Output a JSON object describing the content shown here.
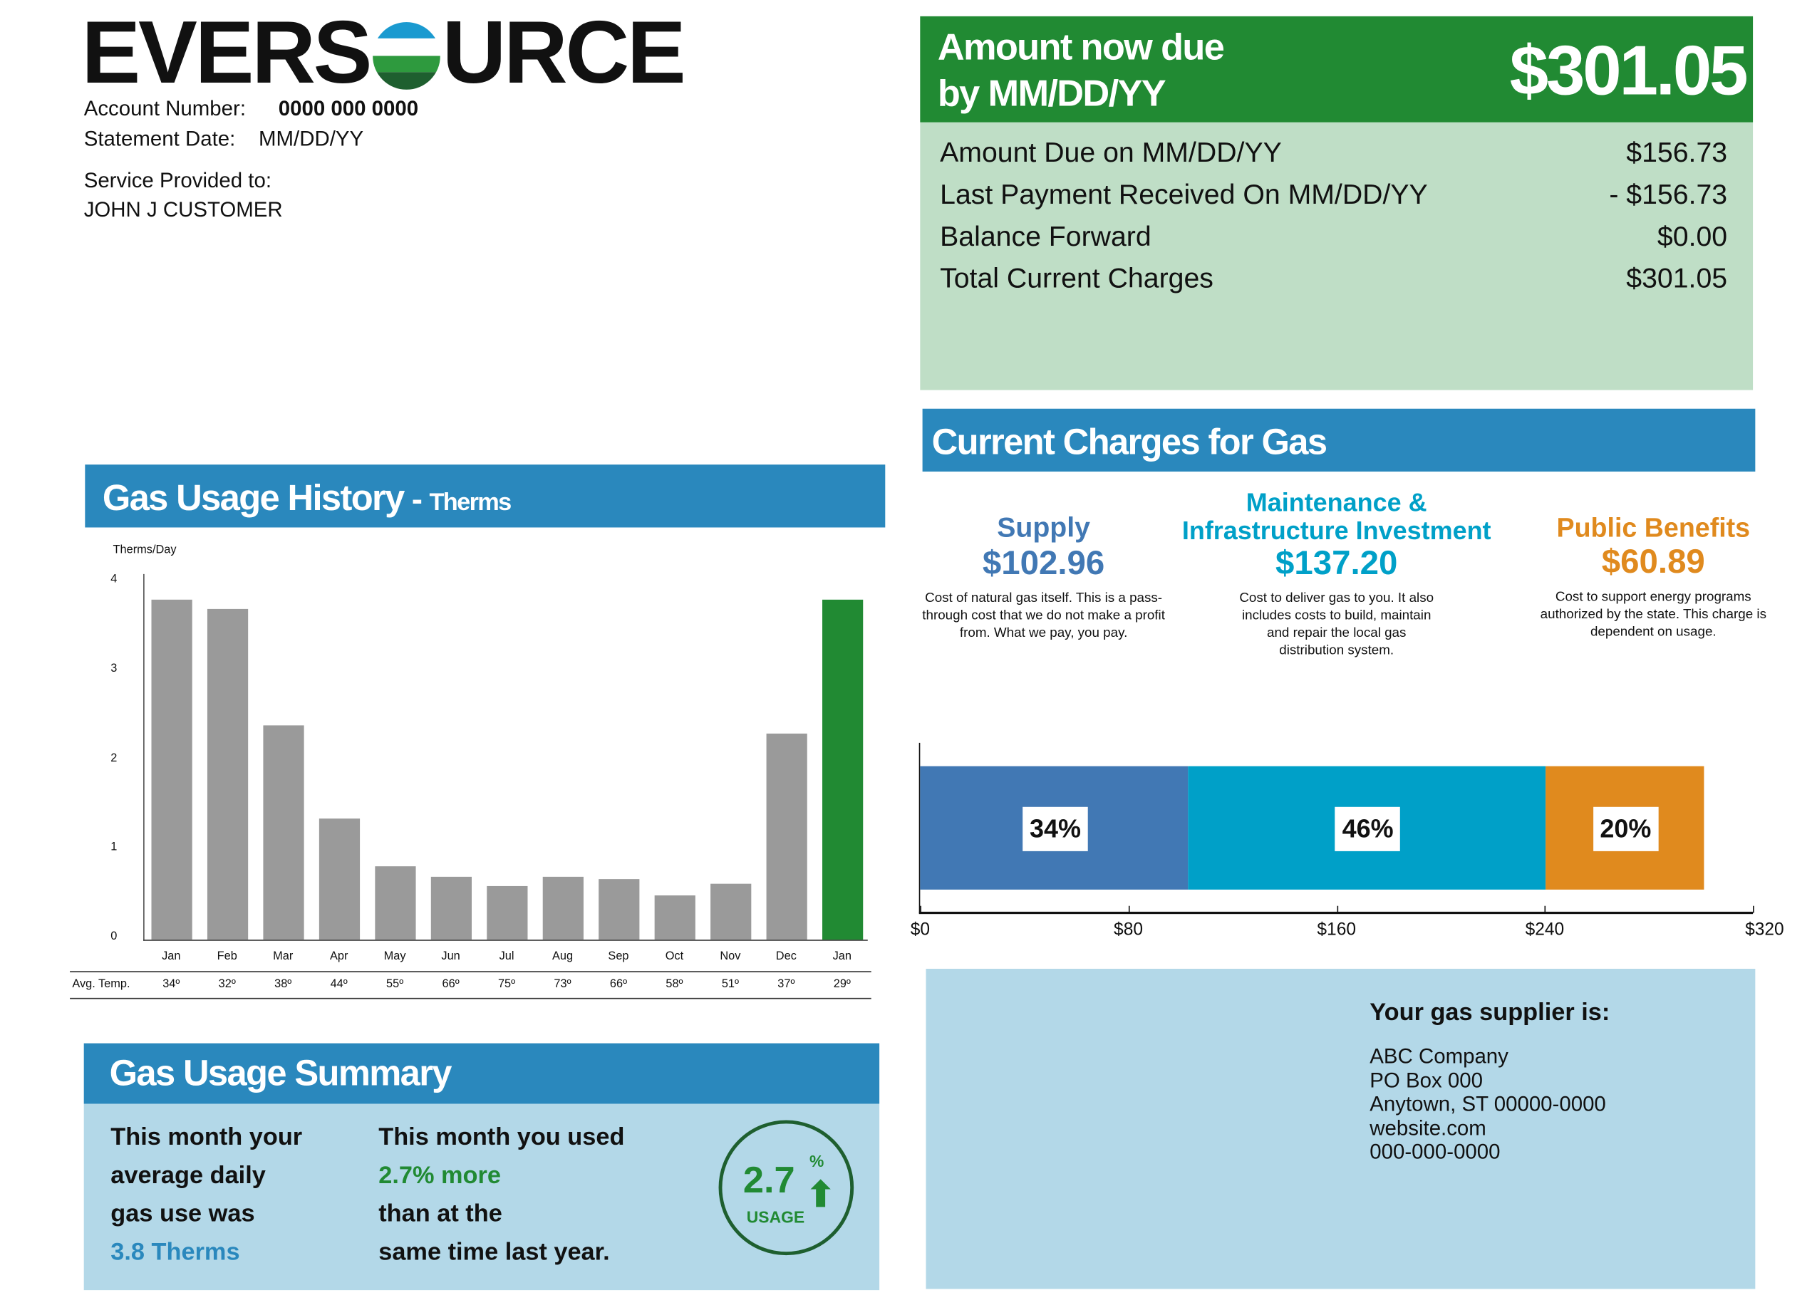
{
  "brand": {
    "logo_text_left": "EVERS",
    "logo_text_right": "URCE",
    "colors": {
      "blue": "#2a88bd",
      "green": "#218a33",
      "dark_green": "#1e5f2f"
    }
  },
  "account": {
    "number_label": "Account Number:",
    "number": "0000 000 0000",
    "statement_label": "Statement Date:",
    "statement_date": "MM/DD/YY",
    "service_label": "Service Provided to:",
    "customer": "JOHN J CUSTOMER"
  },
  "amount_due": {
    "title_line1": "Amount now due",
    "title_line2": "by MM/DD/YY",
    "total": "$301.05",
    "rows": [
      {
        "label": "Amount Due on MM/DD/YY",
        "value": "$156.73"
      },
      {
        "label": "Last Payment Received On MM/DD/YY",
        "value": "- $156.73"
      },
      {
        "label": "Balance Forward",
        "value": "$0.00"
      },
      {
        "label": "Total Current Charges",
        "value": "$301.05"
      }
    ]
  },
  "current_charges": {
    "title": "Current Charges for Gas",
    "categories": [
      {
        "name": "Supply",
        "amount": "$102.96",
        "desc": "Cost of natural gas itself. This is a pass-through cost that we do not make a profit from. What we pay, you pay.",
        "color": "#4178b4"
      },
      {
        "name": "Maintenance & Infrastructure Investment",
        "amount": "$137.20",
        "desc": "Cost to deliver gas to you. It also includes costs to build, maintain and repair the local gas distribution system.",
        "color": "#00a0c8"
      },
      {
        "name": "Public Benefits",
        "amount": "$60.89",
        "desc": "Cost to support energy programs authorized by the state. This charge is dependent on usage.",
        "color": "#e08a1e"
      }
    ]
  },
  "chart_data": [
    {
      "type": "bar",
      "title": "Gas Usage History",
      "title_suffix": "Therms",
      "ylabel": "Therms/Day",
      "ylim": [
        0,
        4
      ],
      "yticks": [
        "0",
        "1",
        "2",
        "3",
        "4"
      ],
      "categories": [
        "Jan",
        "Feb",
        "Mar",
        "Apr",
        "May",
        "Jun",
        "Jul",
        "Aug",
        "Sep",
        "Oct",
        "Nov",
        "Dec",
        "Jan"
      ],
      "values": [
        3.8,
        3.7,
        2.4,
        1.35,
        0.82,
        0.7,
        0.6,
        0.7,
        0.68,
        0.5,
        0.63,
        2.3,
        3.8
      ],
      "highlight_index": 12,
      "temp_label": "Avg. Temp.",
      "temps": [
        "34º",
        "32º",
        "38º",
        "44º",
        "55º",
        "66º",
        "75º",
        "73º",
        "66º",
        "58º",
        "51º",
        "37º",
        "29º"
      ]
    },
    {
      "type": "bar",
      "orientation": "horizontal-stacked",
      "xlim": [
        0,
        320
      ],
      "xticks": [
        "$0",
        "$80",
        "$160",
        "$240",
        "$320"
      ],
      "series": [
        {
          "name": "Supply",
          "value": 102.96,
          "label": "34%"
        },
        {
          "name": "Maintenance & Infrastructure Investment",
          "value": 137.2,
          "label": "46%"
        },
        {
          "name": "Public Benefits",
          "value": 60.89,
          "label": "20%"
        }
      ]
    }
  ],
  "supplier": {
    "heading": "Your gas supplier is:",
    "lines": [
      "ABC Company",
      "PO Box 000",
      "Anytown, ST 00000-0000",
      "website.com",
      "000-000-0000"
    ]
  },
  "summary": {
    "title": "Gas Usage Summary",
    "left": [
      "This month your",
      "average daily",
      "gas use was"
    ],
    "left_value": "3.8 Therms",
    "right_line1": "This month you used",
    "right_value": "2.7% more",
    "right": [
      "than at the",
      "same time last year."
    ],
    "badge_value": "2.7",
    "badge_pct": "%",
    "badge_label": "USAGE",
    "badge_arrow": "⬆"
  }
}
